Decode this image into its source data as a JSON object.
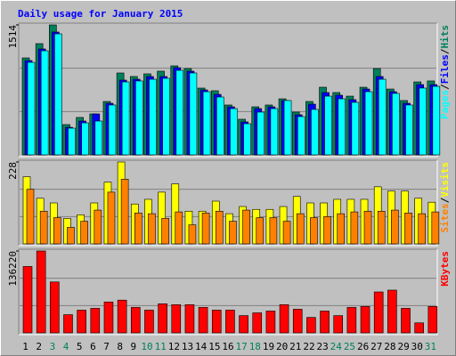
{
  "chart_data": {
    "type": "bar",
    "title": "Daily usage for January 2015",
    "categories": [
      "1",
      "2",
      "3",
      "4",
      "5",
      "6",
      "7",
      "8",
      "9",
      "10",
      "11",
      "12",
      "13",
      "14",
      "15",
      "16",
      "17",
      "18",
      "19",
      "20",
      "21",
      "22",
      "23",
      "24",
      "25",
      "26",
      "27",
      "28",
      "29",
      "30",
      "31"
    ],
    "category_colors": [
      "#000000",
      "#000000",
      "#00805c",
      "#00805c",
      "#000000",
      "#000000",
      "#000000",
      "#000000",
      "#000000",
      "#00805c",
      "#00805c",
      "#000000",
      "#000000",
      "#000000",
      "#000000",
      "#000000",
      "#00805c",
      "#00805c",
      "#000000",
      "#000000",
      "#000000",
      "#000000",
      "#000000",
      "#00805c",
      "#00805c",
      "#000000",
      "#000000",
      "#000000",
      "#000000",
      "#000000",
      "#00805c"
    ],
    "legend_separator": "/",
    "panels": [
      {
        "ylim": [
          0,
          1514
        ],
        "yticks": [
          1514
        ],
        "series": [
          {
            "name": "Hits",
            "color": "#00805c",
            "values": [
              1130,
              1296,
              1514,
              353,
              436,
              477,
              622,
              954,
              913,
              944,
              975,
              1037,
              1006,
              778,
              747,
              581,
              415,
              560,
              581,
              653,
              498,
              622,
              788,
              726,
              684,
              788,
              1006,
              767,
              633,
              850,
              861
            ]
          },
          {
            "name": "Files",
            "color": "#0000ff",
            "values": [
              1099,
              1234,
              1431,
              321,
              394,
              477,
              601,
              871,
              881,
              913,
              913,
              1016,
              975,
              757,
              705,
              560,
              384,
              539,
              560,
              633,
              467,
              591,
              726,
              695,
              643,
              767,
              913,
              736,
              601,
              819,
              819
            ]
          },
          {
            "name": "Pages",
            "color": "#00ffff",
            "values": [
              1078,
              1213,
              1410,
              311,
              373,
              394,
              581,
              850,
              861,
              881,
              892,
              985,
              954,
              736,
              674,
              539,
              363,
              498,
              539,
              633,
              446,
              529,
              684,
              653,
              612,
              736,
              881,
              716,
              581,
              778,
              798
            ]
          }
        ]
      },
      {
        "ylim": [
          0,
          228
        ],
        "yticks": [
          228
        ],
        "series": [
          {
            "name": "Visits",
            "color": "#ffff00",
            "values": [
              187,
              127,
              114,
              71,
              81,
              114,
              172,
              228,
              111,
              124,
              144,
              167,
              91,
              91,
              119,
              84,
              104,
              96,
              96,
              104,
              132,
              114,
              114,
              124,
              124,
              124,
              159,
              147,
              147,
              127,
              116
            ]
          },
          {
            "name": "Sites",
            "color": "#ff8000",
            "values": [
              152,
              91,
              73,
              46,
              63,
              94,
              144,
              180,
              86,
              84,
              71,
              89,
              53,
              86,
              91,
              63,
              94,
              73,
              73,
              63,
              84,
              73,
              76,
              84,
              89,
              91,
              91,
              94,
              86,
              84,
              89
            ]
          }
        ]
      },
      {
        "ylim": [
          0,
          136220
        ],
        "yticks": [
          136220
        ],
        "series": [
          {
            "name": "KBytes",
            "color": "#ff0000",
            "values": [
              110449,
              136220,
              84700,
              30260,
              37800,
              40850,
              51440,
              54470,
              42360,
              37820,
              48400,
              46900,
              46900,
              42360,
              37820,
              37820,
              28750,
              33290,
              36310,
              46900,
              39340,
              25720,
              36310,
              28750,
              42360,
              43870,
              68080,
              71110,
              40850,
              16640,
              43870
            ]
          }
        ]
      }
    ]
  }
}
